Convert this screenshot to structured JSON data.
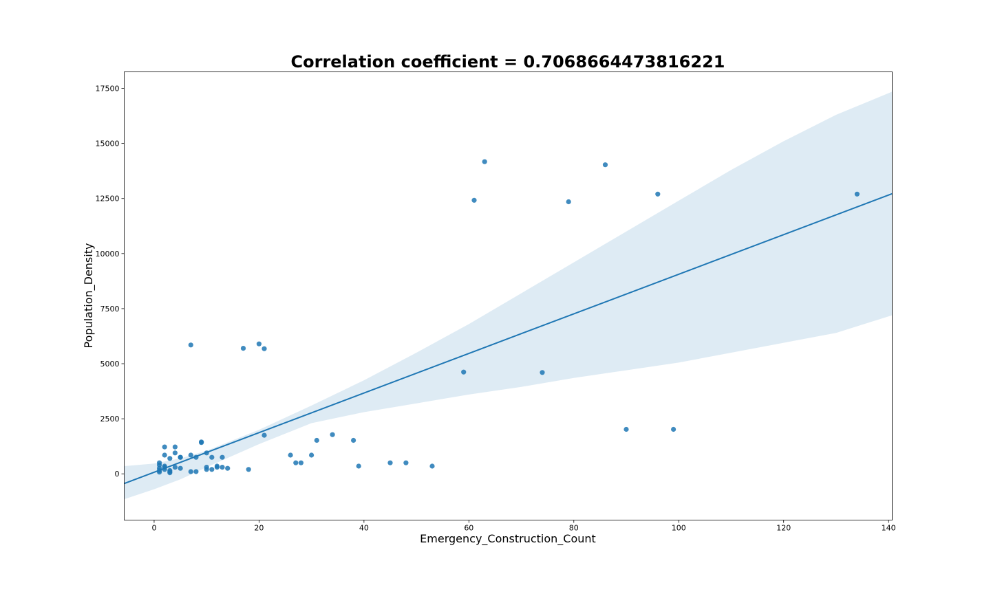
{
  "chart_data": {
    "type": "scatter",
    "title": "Correlation coefficient = 0.7068664473816221",
    "xlabel": "Emergency_Construction_Count",
    "ylabel": "Population_Density",
    "xlim": [
      -5.7,
      140.7
    ],
    "ylim": [
      -2100,
      18250
    ],
    "x_ticks": [
      0,
      20,
      40,
      60,
      80,
      100,
      120,
      140
    ],
    "y_ticks": [
      0,
      2500,
      5000,
      7500,
      10000,
      12500,
      15000,
      17500
    ],
    "x_tick_labels": [
      "0",
      "20",
      "40",
      "60",
      "80",
      "100",
      "120",
      "140"
    ],
    "y_tick_labels": [
      "0",
      "2500",
      "5000",
      "7500",
      "10000",
      "12500",
      "15000",
      "17500"
    ],
    "grid": false,
    "colors": {
      "points": "#1f77b4",
      "line": "#1f77b4",
      "band": "#1f77b4"
    },
    "points": {
      "x": [
        1,
        1,
        1,
        1,
        1,
        2,
        2,
        2,
        2,
        2,
        3,
        3,
        3,
        3,
        4,
        4,
        4,
        5,
        5,
        5,
        7,
        7,
        7,
        8,
        8,
        9,
        9,
        10,
        10,
        10,
        11,
        11,
        12,
        12,
        13,
        13,
        14,
        17,
        18,
        20,
        21,
        21,
        26,
        27,
        28,
        30,
        31,
        34,
        38,
        39,
        45,
        48,
        53,
        59,
        61,
        63,
        74,
        79,
        86,
        90,
        96,
        99,
        134
      ],
      "y": [
        80,
        150,
        250,
        400,
        500,
        200,
        300,
        350,
        850,
        1220,
        50,
        150,
        700,
        100,
        300,
        950,
        1220,
        250,
        750,
        750,
        5850,
        100,
        850,
        100,
        750,
        1450,
        1420,
        200,
        300,
        950,
        200,
        750,
        300,
        350,
        300,
        750,
        250,
        5700,
        200,
        5900,
        5680,
        1750,
        850,
        500,
        500,
        850,
        1520,
        1780,
        1520,
        350,
        500,
        500,
        350,
        4620,
        12420,
        14170,
        4600,
        12350,
        14030,
        2020,
        12700,
        2020,
        12700
      ]
    },
    "regression": {
      "x": [
        -5.7,
        140.7
      ],
      "y": [
        -440,
        12720
      ]
    },
    "confidence_band": {
      "x": [
        -5.7,
        0,
        5,
        10,
        20,
        30,
        40,
        50,
        60,
        70,
        80,
        90,
        100,
        110,
        120,
        130,
        140.7
      ],
      "upper": [
        350,
        470,
        700,
        1050,
        2000,
        3100,
        4250,
        5500,
        6800,
        8200,
        9600,
        11000,
        12400,
        13800,
        15100,
        16300,
        17350
      ],
      "lower": [
        -1150,
        -700,
        -250,
        300,
        1350,
        2300,
        2800,
        3200,
        3600,
        3950,
        4350,
        4700,
        5050,
        5500,
        5950,
        6400,
        7200
      ]
    }
  }
}
